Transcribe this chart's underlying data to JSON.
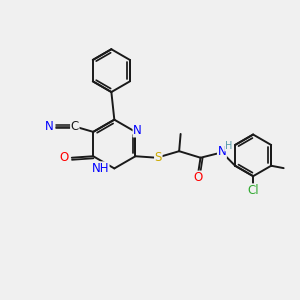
{
  "bg_color": "#f0f0f0",
  "bond_color": "#1a1a1a",
  "bond_width": 1.4,
  "atom_colors": {
    "N": "#0000ff",
    "O": "#ff0000",
    "S": "#ccaa00",
    "Cl": "#33aa33",
    "H_teal": "#5599aa"
  },
  "font_size": 8.5,
  "small_font": 7.0,
  "figsize": [
    3.0,
    3.0
  ],
  "dpi": 100,
  "xlim": [
    0,
    10
  ],
  "ylim": [
    0,
    10
  ]
}
